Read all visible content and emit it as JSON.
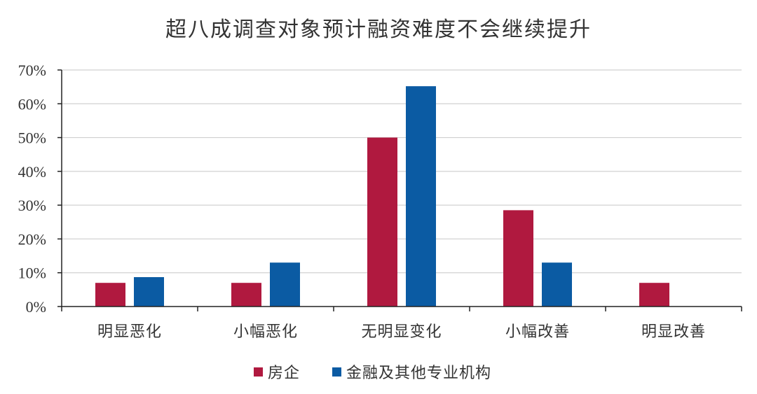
{
  "chart_data": {
    "type": "bar",
    "title": "超八成调查对象预计融资难度不会继续提升",
    "categories": [
      "明显恶化",
      "小幅恶化",
      "无明显变化",
      "小幅改善",
      "明显改善"
    ],
    "series": [
      {
        "name": "房企",
        "values": [
          7,
          7,
          50,
          28.5,
          7
        ],
        "color": "#B0193F"
      },
      {
        "name": "金融及其他专业机构",
        "values": [
          8.7,
          13,
          65.2,
          13,
          0
        ],
        "color": "#0B5BA3"
      }
    ],
    "y_unit": "%",
    "ylim": [
      0,
      70
    ],
    "yticks": [
      "0%",
      "10%",
      "20%",
      "30%",
      "40%",
      "50%",
      "60%",
      "70%"
    ],
    "grid": true,
    "legend_position": "bottom"
  }
}
